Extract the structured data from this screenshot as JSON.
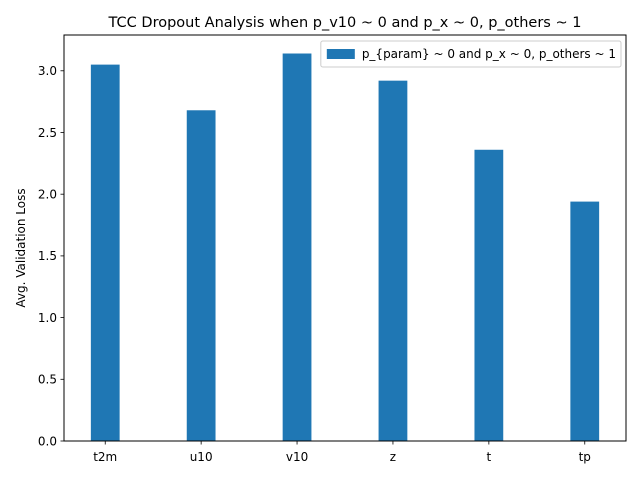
{
  "chart_data": {
    "type": "bar",
    "title": "TCC Dropout Analysis when p_v10 ~ 0 and p_x ~ 0, p_others ~ 1",
    "xlabel": "",
    "ylabel": "Avg. Validation Loss",
    "categories": [
      "t2m",
      "u10",
      "v10",
      "z",
      "t",
      "tp"
    ],
    "series": [
      {
        "name": "p_{param} ~ 0 and p_x ~ 0, p_others ~ 1",
        "values": [
          3.05,
          2.68,
          3.14,
          2.92,
          2.36,
          1.94
        ],
        "color": "#1f77b4"
      }
    ],
    "ylim": [
      0,
      3.29
    ],
    "yticks": [
      0.0,
      0.5,
      1.0,
      1.5,
      2.0,
      2.5,
      3.0
    ],
    "ytick_labels": [
      "0.0",
      "0.5",
      "1.0",
      "1.5",
      "2.0",
      "2.5",
      "3.0"
    ],
    "legend_position": "upper right",
    "grid": false
  }
}
